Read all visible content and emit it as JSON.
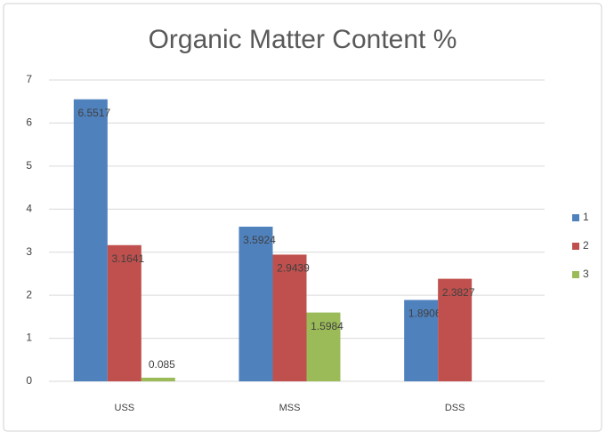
{
  "chart_data": {
    "type": "bar",
    "title": "Organic Matter Content %",
    "categories": [
      "USS",
      "MSS",
      "DSS"
    ],
    "series": [
      {
        "name": "1",
        "color": "#4f81bd",
        "values": [
          6.5517,
          3.5924,
          1.8906
        ]
      },
      {
        "name": "2",
        "color": "#c0504d",
        "values": [
          3.1641,
          2.9439,
          2.3827
        ]
      },
      {
        "name": "3",
        "color": "#9bbb59",
        "values": [
          0.085,
          1.5984,
          null
        ]
      }
    ],
    "ylim": [
      0,
      7
    ],
    "yticks": [
      0,
      1,
      2,
      3,
      4,
      5,
      6,
      7
    ],
    "grid": true,
    "legend": "right"
  }
}
